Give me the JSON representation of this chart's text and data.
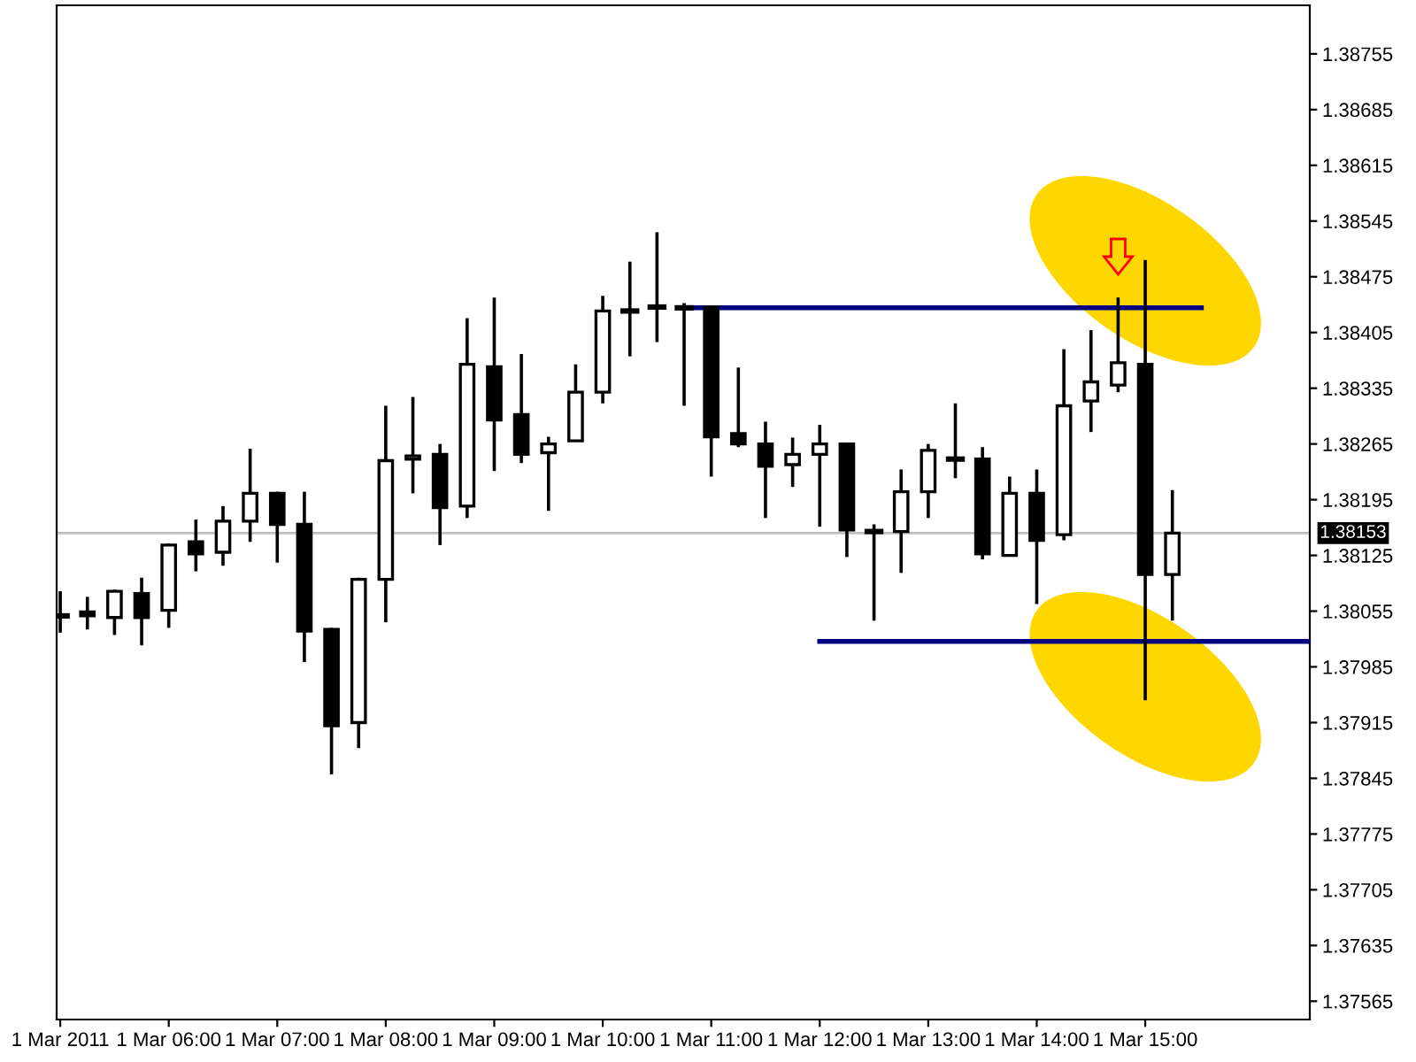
{
  "chart_data": {
    "type": "candlestick",
    "color": "#000000",
    "x": [
      "2011-03-01T05:00",
      "2011-03-01T05:15",
      "2011-03-01T05:30",
      "2011-03-01T05:45",
      "2011-03-01T06:00",
      "2011-03-01T06:15",
      "2011-03-01T06:30",
      "2011-03-01T06:45",
      "2011-03-01T07:00",
      "2011-03-01T07:15",
      "2011-03-01T07:30",
      "2011-03-01T07:45",
      "2011-03-01T08:00",
      "2011-03-01T08:15",
      "2011-03-01T08:30",
      "2011-03-01T08:45",
      "2011-03-01T09:00",
      "2011-03-01T09:15",
      "2011-03-01T09:30",
      "2011-03-01T09:45",
      "2011-03-01T10:00",
      "2011-03-01T10:15",
      "2011-03-01T10:30",
      "2011-03-01T10:45",
      "2011-03-01T11:00",
      "2011-03-01T11:15",
      "2011-03-01T11:30",
      "2011-03-01T11:45",
      "2011-03-01T12:00",
      "2011-03-01T12:15",
      "2011-03-01T12:30",
      "2011-03-01T12:45",
      "2011-03-01T13:00",
      "2011-03-01T13:15",
      "2011-03-01T13:30",
      "2011-03-01T13:45",
      "2011-03-01T14:00",
      "2011-03-01T14:15",
      "2011-03-01T14:30",
      "2011-03-01T14:45",
      "2011-03-01T15:00",
      "2011-03-01T15:15"
    ],
    "ohlc": [
      [
        1.38049,
        1.3808,
        1.38028,
        1.38049
      ],
      [
        1.38054,
        1.38073,
        1.38032,
        1.38049
      ],
      [
        1.38047,
        1.38082,
        1.38025,
        1.3808
      ],
      [
        1.38077,
        1.38097,
        1.38012,
        1.38047
      ],
      [
        1.38056,
        1.3814,
        1.38034,
        1.38138
      ],
      [
        1.38142,
        1.3817,
        1.38105,
        1.38127
      ],
      [
        1.38129,
        1.38187,
        1.38112,
        1.38168
      ],
      [
        1.38168,
        1.38259,
        1.38142,
        1.38203
      ],
      [
        1.38203,
        1.38205,
        1.38116,
        1.38164
      ],
      [
        1.38164,
        1.38205,
        1.37991,
        1.3803
      ],
      [
        1.38032,
        1.38034,
        1.3785,
        1.37911
      ],
      [
        1.37915,
        1.38097,
        1.37883,
        1.38095
      ],
      [
        1.38095,
        1.38313,
        1.38041,
        1.38244
      ],
      [
        1.38246,
        1.38324,
        1.38203,
        1.3825
      ],
      [
        1.38252,
        1.38265,
        1.38138,
        1.38185
      ],
      [
        1.38187,
        1.38423,
        1.38172,
        1.38365
      ],
      [
        1.38362,
        1.38449,
        1.38231,
        1.38295
      ],
      [
        1.38302,
        1.38378,
        1.38241,
        1.38252
      ],
      [
        1.38254,
        1.38274,
        1.38181,
        1.38265
      ],
      [
        1.38269,
        1.38365,
        1.38269,
        1.3833
      ],
      [
        1.3833,
        1.38451,
        1.38316,
        1.38432
      ],
      [
        1.38432,
        1.38494,
        1.38375,
        1.38432
      ],
      [
        1.38437,
        1.38531,
        1.38393,
        1.38437
      ],
      [
        1.38436,
        1.38442,
        1.38313,
        1.38436
      ],
      [
        1.38437,
        1.38437,
        1.38224,
        1.38274
      ],
      [
        1.38278,
        1.38361,
        1.38261,
        1.38265
      ],
      [
        1.38265,
        1.38293,
        1.38172,
        1.38237
      ],
      [
        1.38239,
        1.38273,
        1.38211,
        1.38252
      ],
      [
        1.38252,
        1.38289,
        1.38161,
        1.38265
      ],
      [
        1.38265,
        1.38265,
        1.38123,
        1.38157
      ],
      [
        1.38155,
        1.38164,
        1.38043,
        1.38155
      ],
      [
        1.38155,
        1.38233,
        1.38103,
        1.38205
      ],
      [
        1.38205,
        1.38265,
        1.38172,
        1.38257
      ],
      [
        1.38246,
        1.38316,
        1.38222,
        1.38246
      ],
      [
        1.38246,
        1.38261,
        1.3812,
        1.38127
      ],
      [
        1.38125,
        1.38224,
        1.38125,
        1.38203
      ],
      [
        1.38203,
        1.38233,
        1.38064,
        1.38144
      ],
      [
        1.38151,
        1.38384,
        1.38144,
        1.38313
      ],
      [
        1.38319,
        1.38408,
        1.3828,
        1.38343
      ],
      [
        1.38339,
        1.38449,
        1.3833,
        1.38367
      ],
      [
        1.38365,
        1.38496,
        1.37943,
        1.38101
      ],
      [
        1.38101,
        1.38207,
        1.38043,
        1.38153
      ]
    ],
    "series": [
      {
        "type": "line",
        "color": "#000080",
        "x": [
          "2011-03-01T10:44",
          "2011-03-01T15:31"
        ],
        "values": [
          1.38436,
          1.38436
        ]
      },
      {
        "type": "line",
        "color": "#000080",
        "x": [
          "2011-03-01T12:00",
          "2011-03-01T16:31"
        ],
        "values": [
          1.38017,
          1.38017
        ]
      }
    ],
    "ref_lines": [
      {
        "axis": "y",
        "value": 1.38153,
        "label": "1.38153",
        "color": "#c0c0c0"
      }
    ],
    "xlim": [
      "2011-03-01T04:58",
      "2011-03-01T16:31"
    ],
    "xticks": [
      {
        "value": "2011-03-01T05:00",
        "label": "1 Mar 2011"
      },
      {
        "value": "2011-03-01T06:00",
        "label": "1 Mar 06:00"
      },
      {
        "value": "2011-03-01T07:00",
        "label": "1 Mar 07:00"
      },
      {
        "value": "2011-03-01T08:00",
        "label": "1 Mar 08:00"
      },
      {
        "value": "2011-03-01T09:00",
        "label": "1 Mar 09:00"
      },
      {
        "value": "2011-03-01T10:00",
        "label": "1 Mar 10:00"
      },
      {
        "value": "2011-03-01T11:00",
        "label": "1 Mar 11:00"
      },
      {
        "value": "2011-03-01T12:00",
        "label": "1 Mar 12:00"
      },
      {
        "value": "2011-03-01T13:00",
        "label": "1 Mar 13:00"
      },
      {
        "value": "2011-03-01T14:00",
        "label": "1 Mar 14:00"
      },
      {
        "value": "2011-03-01T15:00",
        "label": "1 Mar 15:00"
      }
    ],
    "ylim": [
      1.37542,
      1.38816
    ],
    "yticks": [
      1.37565,
      1.37635,
      1.37705,
      1.37775,
      1.37845,
      1.37915,
      1.37985,
      1.38055,
      1.38125,
      1.38195,
      1.38265,
      1.38335,
      1.38405,
      1.38475,
      1.38545,
      1.38615,
      1.38685,
      1.38755
    ],
    "grid": false,
    "legend": false
  }
}
